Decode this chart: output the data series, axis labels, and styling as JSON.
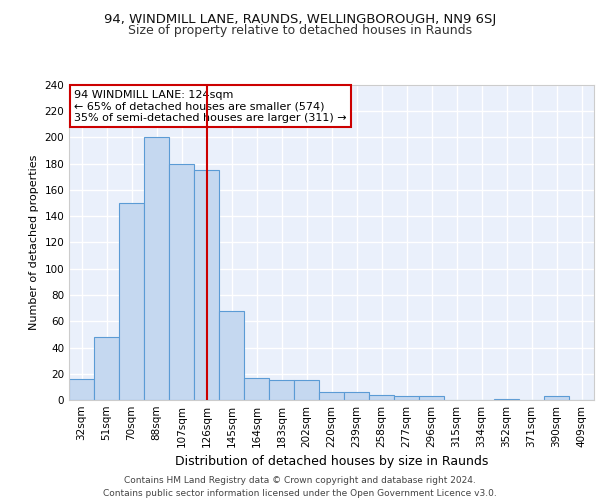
{
  "title1": "94, WINDMILL LANE, RAUNDS, WELLINGBOROUGH, NN9 6SJ",
  "title2": "Size of property relative to detached houses in Raunds",
  "xlabel": "Distribution of detached houses by size in Raunds",
  "ylabel": "Number of detached properties",
  "categories": [
    "32sqm",
    "51sqm",
    "70sqm",
    "88sqm",
    "107sqm",
    "126sqm",
    "145sqm",
    "164sqm",
    "183sqm",
    "202sqm",
    "220sqm",
    "239sqm",
    "258sqm",
    "277sqm",
    "296sqm",
    "315sqm",
    "334sqm",
    "352sqm",
    "371sqm",
    "390sqm",
    "409sqm"
  ],
  "values": [
    16,
    48,
    150,
    200,
    180,
    175,
    68,
    17,
    15,
    15,
    6,
    6,
    4,
    3,
    3,
    0,
    0,
    1,
    0,
    3,
    0
  ],
  "bar_color": "#c5d8f0",
  "bar_edge_color": "#5b9bd5",
  "red_line_x": 5.0,
  "annotation_line1": "94 WINDMILL LANE: 124sqm",
  "annotation_line2": "← 65% of detached houses are smaller (574)",
  "annotation_line3": "35% of semi-detached houses are larger (311) →",
  "annotation_box_color": "#ffffff",
  "annotation_box_edge": "#cc0000",
  "ylim": [
    0,
    240
  ],
  "yticks": [
    0,
    20,
    40,
    60,
    80,
    100,
    120,
    140,
    160,
    180,
    200,
    220,
    240
  ],
  "footer1": "Contains HM Land Registry data © Crown copyright and database right 2024.",
  "footer2": "Contains public sector information licensed under the Open Government Licence v3.0.",
  "bg_color": "#eaf0fb",
  "grid_color": "#ffffff",
  "title1_fontsize": 9.5,
  "title2_fontsize": 9,
  "xlabel_fontsize": 9,
  "ylabel_fontsize": 8,
  "tick_fontsize": 7.5,
  "annotation_fontsize": 8,
  "footer_fontsize": 6.5
}
